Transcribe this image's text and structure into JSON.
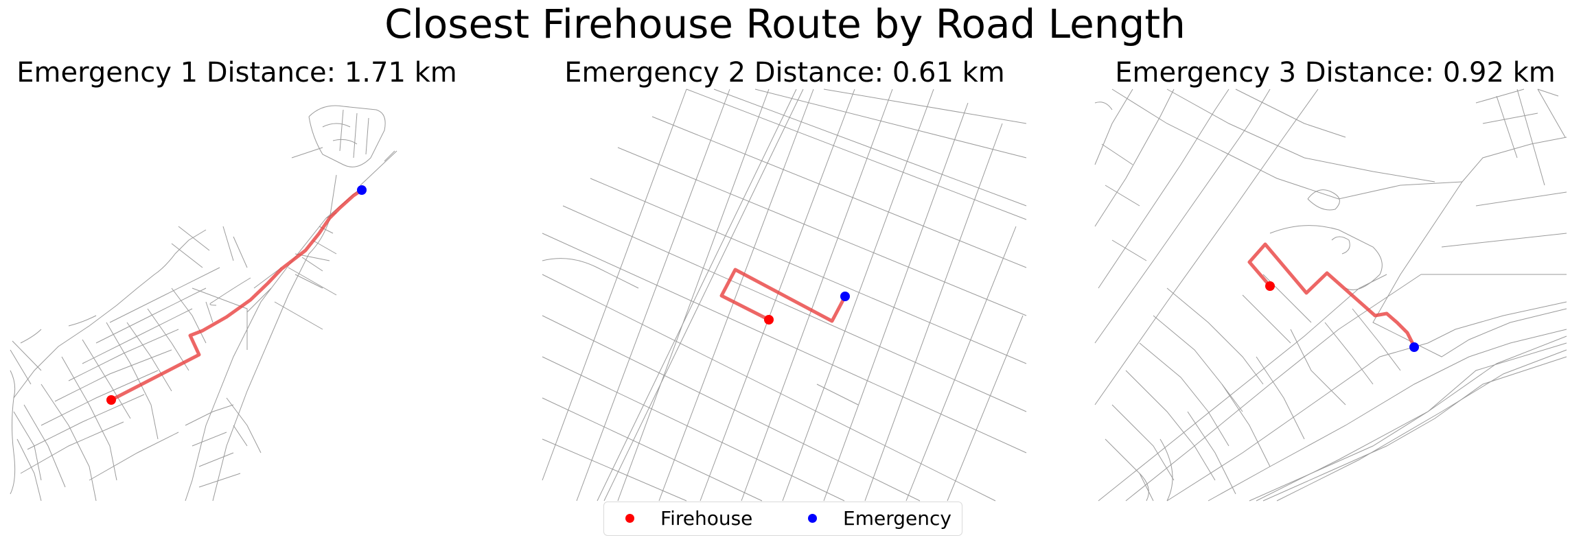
{
  "figure": {
    "title": "Closest Firehouse Route by Road Length"
  },
  "panels": [
    {
      "title": "Emergency 1 Distance: 1.71 km",
      "distance_km": 1.71
    },
    {
      "title": "Emergency 2 Distance: 0.61 km",
      "distance_km": 0.61
    },
    {
      "title": "Emergency 3 Distance: 0.92 km",
      "distance_km": 0.92
    }
  ],
  "legend": {
    "firehouse_label": "Firehouse",
    "emergency_label": "Emergency"
  },
  "colors": {
    "firehouse": "#ff0000",
    "emergency": "#0000ff",
    "route": "#e8403f",
    "roads": "#9a9a9a"
  }
}
